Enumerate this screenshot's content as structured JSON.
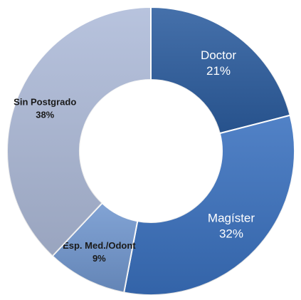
{
  "chart_data": {
    "type": "donut",
    "categories": [
      "Doctor",
      "Magíster",
      "Esp. Med./Odont",
      "Sin Postgrado"
    ],
    "values": [
      21,
      32,
      9,
      38
    ],
    "value_labels": [
      "21%",
      "32%",
      "9%",
      "38%"
    ],
    "colors": [
      "#2c5d9f",
      "#3a71bf",
      "#7197cf",
      "#aebbd9"
    ]
  }
}
